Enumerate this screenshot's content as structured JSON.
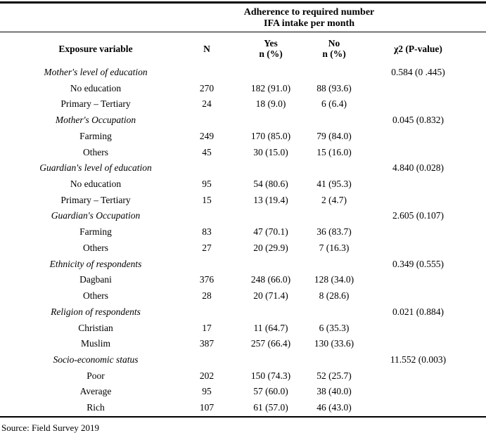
{
  "table": {
    "span_header": {
      "line1": "Adherence to required number",
      "line2": "IFA intake per month"
    },
    "columns": {
      "exposure": "Exposure variable",
      "n": "N",
      "yes_line1": "Yes",
      "yes_line2": "n (%)",
      "no_line1": "No",
      "no_line2": "n (%)",
      "chi": "χ2 (P-value)"
    },
    "rows": [
      {
        "style": "group",
        "label": "Mother's level of education",
        "n": "",
        "yes": "",
        "no": "",
        "chi": "0.584 (0 .445)"
      },
      {
        "style": "item",
        "label": "No education",
        "n": "270",
        "yes": "182 (91.0)",
        "no": "88 (93.6)",
        "chi": ""
      },
      {
        "style": "item",
        "label": "Primary – Tertiary",
        "n": "24",
        "yes": "18 (9.0)",
        "no": "6 (6.4)",
        "chi": ""
      },
      {
        "style": "group",
        "label": "Mother's Occupation",
        "n": "",
        "yes": "",
        "no": "",
        "chi": "0.045 (0.832)"
      },
      {
        "style": "item",
        "label": "Farming",
        "n": "249",
        "yes": "170 (85.0)",
        "no": "79 (84.0)",
        "chi": ""
      },
      {
        "style": "item",
        "label": "Others",
        "n": "45",
        "yes": "30 (15.0)",
        "no": "15 (16.0)",
        "chi": ""
      },
      {
        "style": "group",
        "label": "Guardian's level of education",
        "n": "",
        "yes": "",
        "no": "",
        "chi": "4.840 (0.028)"
      },
      {
        "style": "item",
        "label": "No education",
        "n": "95",
        "yes": "54 (80.6)",
        "no": "41 (95.3)",
        "chi": ""
      },
      {
        "style": "item",
        "label": "Primary – Tertiary",
        "n": "15",
        "yes": "13 (19.4)",
        "no": "2 (4.7)",
        "chi": ""
      },
      {
        "style": "group",
        "label": "Guardian's Occupation",
        "n": "",
        "yes": "",
        "no": "",
        "chi": "2.605 (0.107)"
      },
      {
        "style": "item",
        "label": "Farming",
        "n": "83",
        "yes": "47 (70.1)",
        "no": "36 (83.7)",
        "chi": ""
      },
      {
        "style": "item",
        "label": "Others",
        "n": "27",
        "yes": "20 (29.9)",
        "no": "7 (16.3)",
        "chi": ""
      },
      {
        "style": "group",
        "label": "Ethnicity of respondents",
        "n": "",
        "yes": "",
        "no": "",
        "chi": "0.349 (0.555)"
      },
      {
        "style": "item",
        "label": "Dagbani",
        "n": "376",
        "yes": "248 (66.0)",
        "no": "128 (34.0)",
        "chi": ""
      },
      {
        "style": "item",
        "label": "Others",
        "n": "28",
        "yes": "20 (71.4)",
        "no": "8 (28.6)",
        "chi": ""
      },
      {
        "style": "group",
        "label": "Religion of respondents",
        "n": "",
        "yes": "",
        "no": "",
        "chi": "0.021 (0.884)"
      },
      {
        "style": "item",
        "label": "Christian",
        "n": "17",
        "yes": "11 (64.7)",
        "no": "6 (35.3)",
        "chi": ""
      },
      {
        "style": "item",
        "label": "Muslim",
        "n": "387",
        "yes": "257 (66.4)",
        "no": "130 (33.6)",
        "chi": ""
      },
      {
        "style": "group",
        "label": "Socio-economic status",
        "n": "",
        "yes": "",
        "no": "",
        "chi": "11.552 (0.003)"
      },
      {
        "style": "item",
        "label": "Poor",
        "n": "202",
        "yes": "150 (74.3)",
        "no": "52 (25.7)",
        "chi": ""
      },
      {
        "style": "item",
        "label": "Average",
        "n": "95",
        "yes": "57 (60.0)",
        "no": "38 (40.0)",
        "chi": ""
      },
      {
        "style": "item",
        "label": "Rich",
        "n": "107",
        "yes": "61 (57.0)",
        "no": "46 (43.0)",
        "chi": ""
      }
    ]
  },
  "footer": {
    "source": "Source: Field Survey 2019"
  }
}
